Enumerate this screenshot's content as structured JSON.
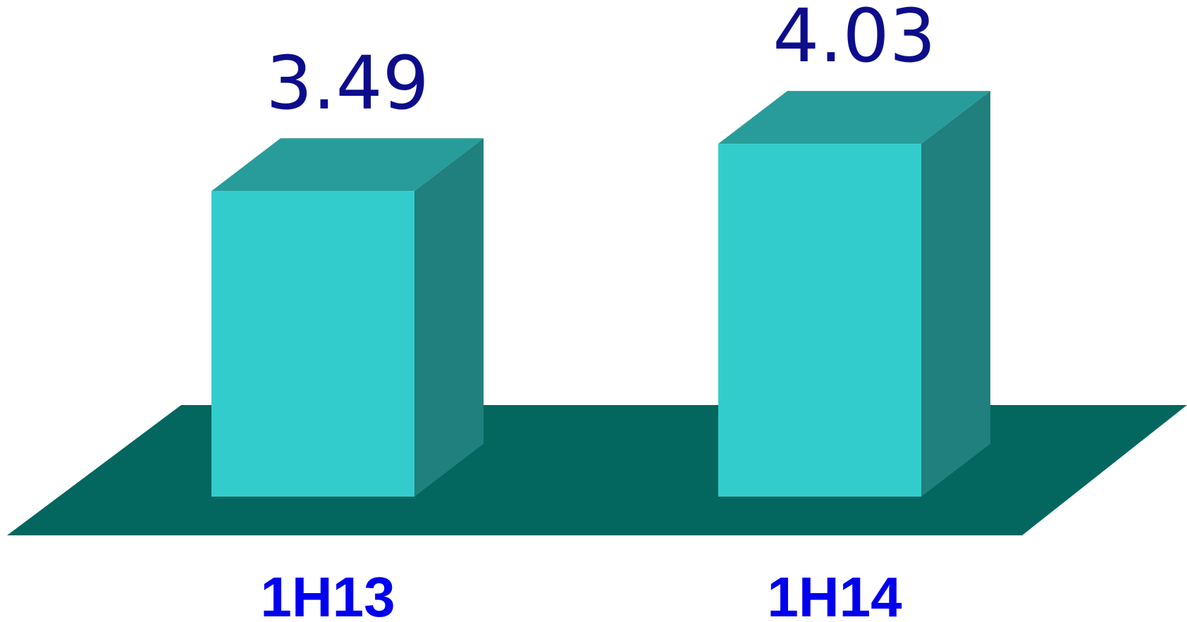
{
  "chart_data": {
    "type": "bar",
    "style": "3d",
    "categories": [
      "1H13",
      "1H14"
    ],
    "values": [
      3.49,
      4.03
    ],
    "data_labels": [
      "3.49",
      "4.03"
    ],
    "title": "",
    "xlabel": "",
    "ylabel": "",
    "grid": false,
    "legend": "none",
    "colors": {
      "bar_front": "#33cccc",
      "bar_top": "#289c9a",
      "bar_side": "#1f807d",
      "floor": "#03675f",
      "value_label": "#0d0d8c",
      "category_label": "#0000ee"
    }
  }
}
